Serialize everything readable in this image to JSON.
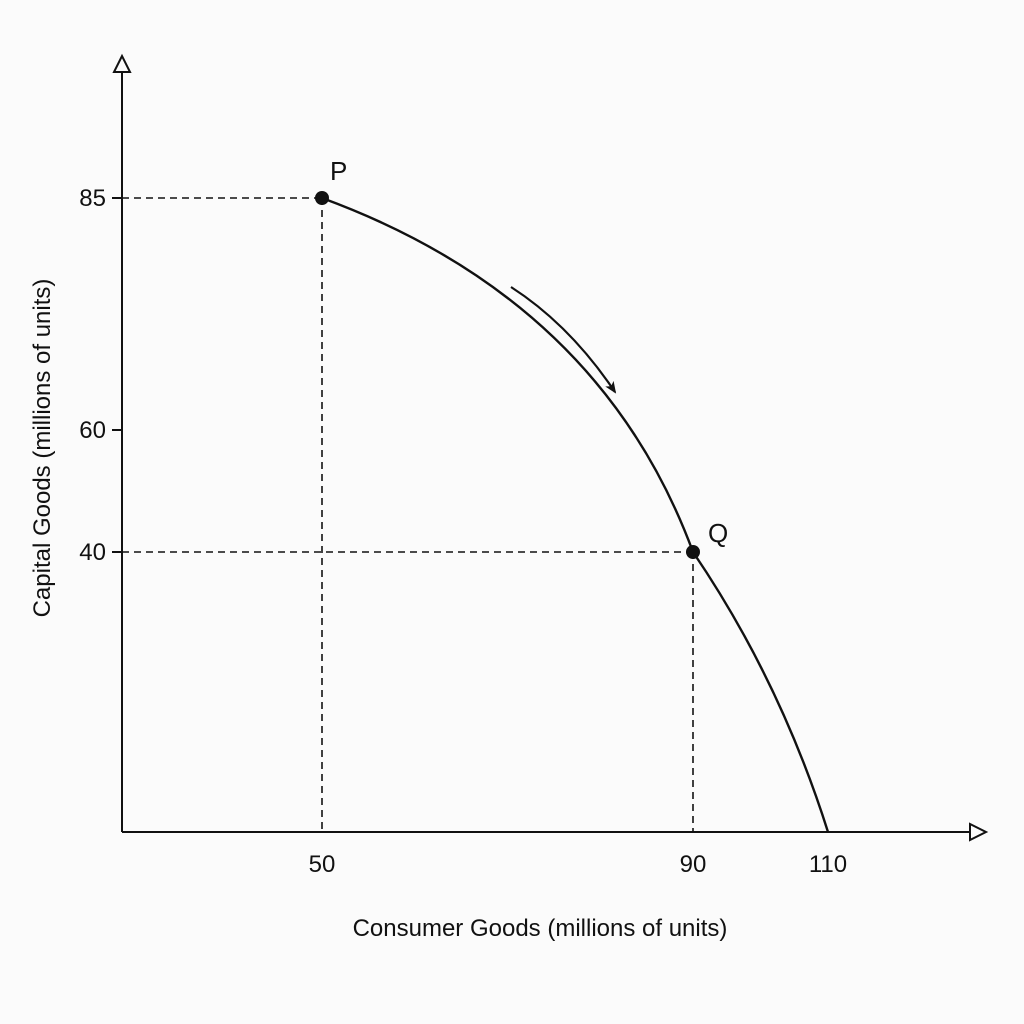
{
  "chart_data": {
    "type": "line",
    "xlabel": "Consumer Goods (millions of units)",
    "ylabel": "Capital Goods (millions of units)",
    "x_ticks": [
      "50",
      "90",
      "110"
    ],
    "y_ticks": [
      "85",
      "60",
      "40"
    ],
    "xlim": [
      0,
      130
    ],
    "ylim": [
      0,
      110
    ],
    "series": [
      {
        "x": [
          50,
          60,
          70,
          80,
          90,
          100,
          110
        ],
        "y": [
          85,
          78,
          68,
          56,
          40,
          22,
          0
        ]
      }
    ],
    "points": [
      {
        "label": "P",
        "x": 50,
        "y": 85
      },
      {
        "label": "Q",
        "x": 90,
        "y": 40
      }
    ],
    "arrow": {
      "from": [
        70,
        68
      ],
      "to": [
        80,
        55
      ]
    },
    "grid": false
  }
}
